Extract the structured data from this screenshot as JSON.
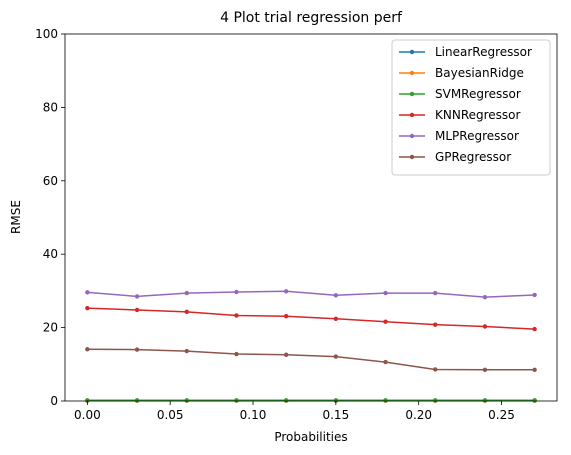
{
  "chart_data": {
    "type": "line",
    "title": "4 Plot trial regression perf",
    "xlabel": "Probabilities",
    "ylabel": "RMSE",
    "xlim": [
      -0.0135,
      0.2835
    ],
    "ylim": [
      0,
      100
    ],
    "xticks": [
      "0.00",
      "0.05",
      "0.10",
      "0.15",
      "0.20",
      "0.25"
    ],
    "xtick_values": [
      0.0,
      0.05,
      0.1,
      0.15,
      0.2,
      0.25
    ],
    "yticks": [
      "0",
      "20",
      "40",
      "60",
      "80",
      "100"
    ],
    "ytick_values": [
      0,
      20,
      40,
      60,
      80,
      100
    ],
    "grid": false,
    "legend_position": "top-right",
    "x": [
      0.0,
      0.03,
      0.06,
      0.09,
      0.12,
      0.15,
      0.18,
      0.21,
      0.24,
      0.27
    ],
    "series": [
      {
        "name": "LinearRegressor",
        "color": "#1f77b4",
        "values": [
          0.1,
          0.1,
          0.1,
          0.1,
          0.1,
          0.1,
          0.1,
          0.1,
          0.1,
          0.1
        ]
      },
      {
        "name": "BayesianRidge",
        "color": "#ff7f0e",
        "values": [
          0.1,
          0.1,
          0.1,
          0.1,
          0.1,
          0.1,
          0.1,
          0.1,
          0.1,
          0.1
        ]
      },
      {
        "name": "SVMRegressor",
        "color": "#2ca02c",
        "values": [
          0.2,
          0.2,
          0.2,
          0.2,
          0.2,
          0.2,
          0.2,
          0.2,
          0.2,
          0.2
        ]
      },
      {
        "name": "KNNRegressor",
        "color": "#d62728",
        "values": [
          25.3,
          24.8,
          24.3,
          23.3,
          23.1,
          22.4,
          21.6,
          20.8,
          20.3,
          19.6
        ]
      },
      {
        "name": "MLPRegressor",
        "color": "#9467bd",
        "values": [
          29.6,
          28.5,
          29.4,
          29.7,
          29.9,
          28.8,
          29.4,
          29.4,
          28.3,
          28.9
        ]
      },
      {
        "name": "GPRegressor",
        "color": "#8c564b",
        "values": [
          14.1,
          14.0,
          13.6,
          12.8,
          12.6,
          12.1,
          10.6,
          8.6,
          8.5,
          8.5
        ]
      }
    ]
  }
}
